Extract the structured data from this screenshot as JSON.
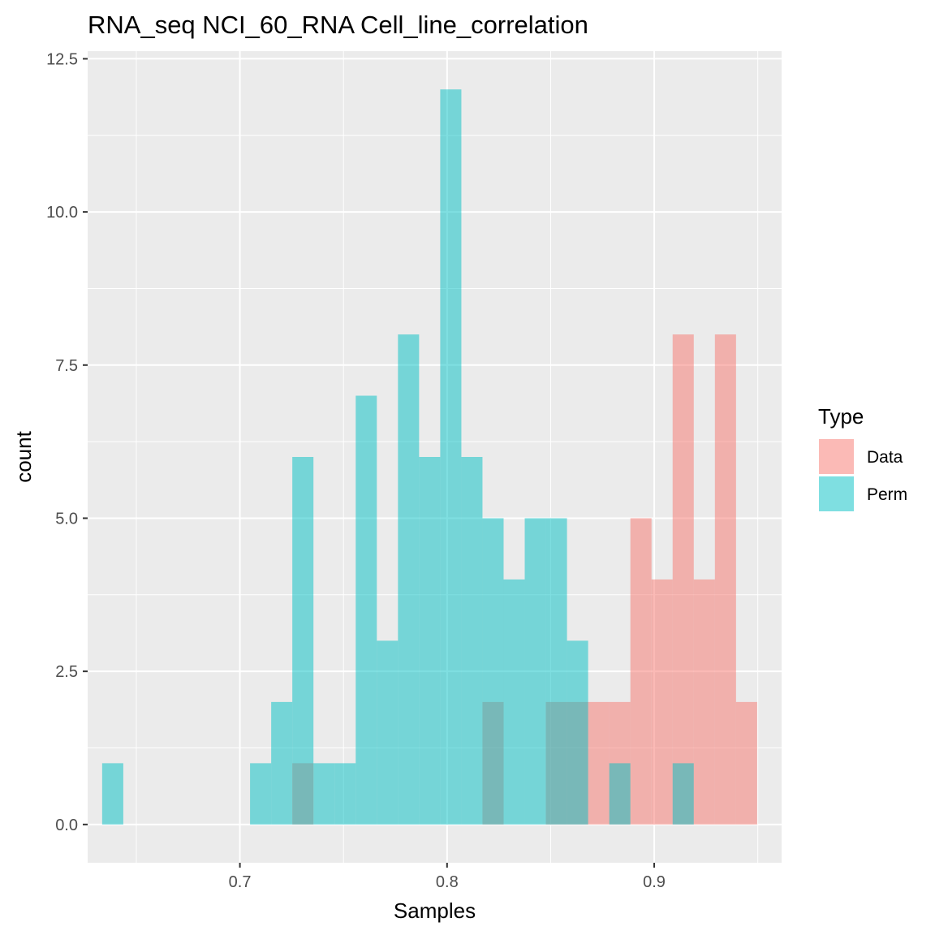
{
  "chart_data": {
    "type": "bar",
    "title": "RNA_seq NCI_60_RNA Cell_line_correlation",
    "xlabel": "Samples",
    "ylabel": "count",
    "xlim": [
      0.6265,
      0.9615
    ],
    "ylim": [
      -0.625,
      12.625
    ],
    "x_ticks": [
      0.7,
      0.8,
      0.9
    ],
    "x_tick_labels": [
      "0.7",
      "0.8",
      "0.9"
    ],
    "y_ticks": [
      0,
      2.5,
      5,
      7.5,
      10,
      12.5
    ],
    "y_tick_labels": [
      "0.0",
      "2.5",
      "5.0",
      "7.5",
      "10.0",
      "12.5"
    ],
    "grid": true,
    "bin_width": 0.0102,
    "bin_start": 0.6335,
    "legend": {
      "title": "Type",
      "placement": "right",
      "items": [
        {
          "label": "Data",
          "color": "#F8766D"
        },
        {
          "label": "Perm",
          "color": "#00BFC4"
        }
      ]
    },
    "series": [
      {
        "name": "Data",
        "color": "#F8766D",
        "values": [
          0,
          0,
          0,
          0,
          0,
          0,
          0,
          0,
          0,
          1,
          0,
          0,
          0,
          0,
          0,
          0,
          0,
          0,
          2,
          0,
          0,
          2,
          2,
          2,
          2,
          5,
          4,
          8,
          4,
          8,
          2
        ]
      },
      {
        "name": "Perm",
        "color": "#00BFC4",
        "values": [
          1,
          0,
          0,
          0,
          0,
          0,
          0,
          1,
          2,
          6,
          1,
          1,
          7,
          3,
          8,
          6,
          12,
          6,
          5,
          4,
          5,
          5,
          3,
          0,
          1,
          0,
          0,
          1,
          0,
          0,
          0
        ]
      }
    ]
  }
}
